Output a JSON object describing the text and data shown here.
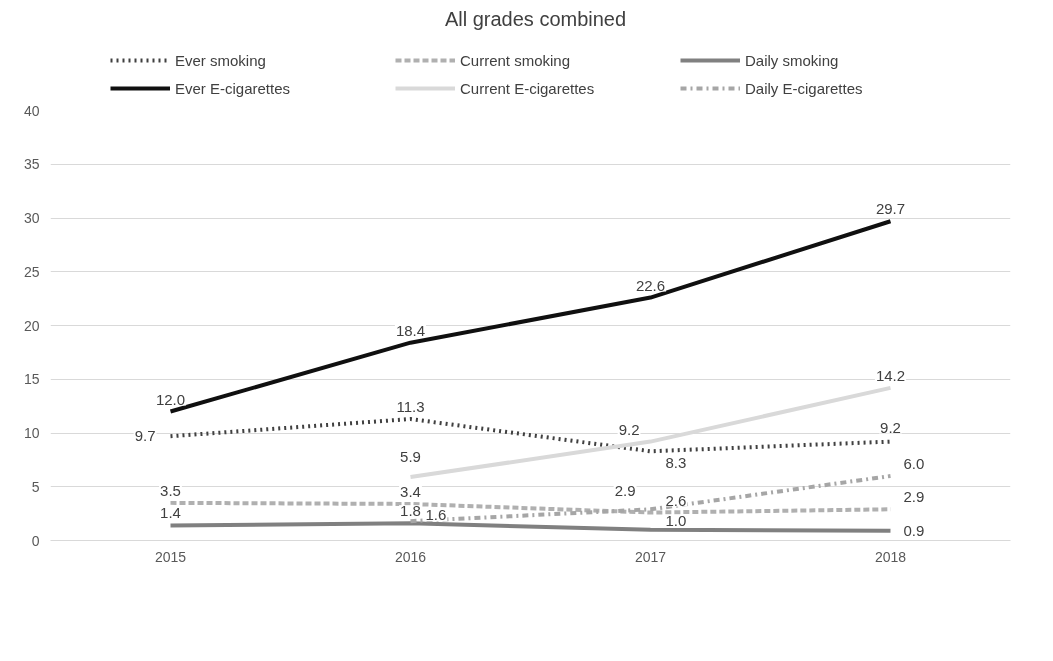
{
  "chart_data": {
    "type": "line",
    "title": "All grades combined",
    "categories": [
      "2015",
      "2016",
      "2017",
      "2018"
    ],
    "series": [
      {
        "name": "Ever smoking",
        "color": "#404040",
        "line_style": "dotted",
        "values": [
          9.7,
          11.3,
          8.3,
          9.2
        ],
        "value_labels": [
          "9.7",
          "11.3",
          "8.3",
          "9.2"
        ]
      },
      {
        "name": "Current smoking",
        "color": "#b0b0b0",
        "line_style": "dashed",
        "values": [
          3.5,
          3.4,
          2.6,
          2.9
        ],
        "value_labels": [
          "3.5",
          "3.4",
          "2.6",
          "2.9"
        ]
      },
      {
        "name": "Daily smoking",
        "color": "#808080",
        "line_style": "solid",
        "values": [
          1.4,
          1.6,
          1.0,
          0.9
        ],
        "value_labels": [
          "1.4",
          "1.6",
          "1.0",
          "0.9"
        ]
      },
      {
        "name": "Ever E-cigarettes",
        "color": "#101010",
        "line_style": "solid",
        "values": [
          12.0,
          18.4,
          22.6,
          29.7
        ],
        "value_labels": [
          "12.0",
          "18.4",
          "22.6",
          "29.7"
        ]
      },
      {
        "name": "Current E-cigarettes",
        "color": "#d9d9d9",
        "line_style": "solid",
        "values": [
          null,
          5.9,
          9.2,
          14.2
        ],
        "value_labels": [
          null,
          "5.9",
          "9.2",
          "14.2"
        ]
      },
      {
        "name": "Daily E-cigarettes",
        "color": "#a6a6a6",
        "line_style": "dashdot",
        "values": [
          null,
          1.8,
          2.9,
          6.0
        ],
        "value_labels": [
          null,
          "1.8",
          "2.9",
          "6.0"
        ]
      }
    ],
    "ylim": [
      0,
      40
    ],
    "yticks": [
      0,
      5,
      10,
      15,
      20,
      25,
      30,
      35,
      40
    ],
    "grid": "y",
    "legend": "top",
    "marker": "none"
  }
}
